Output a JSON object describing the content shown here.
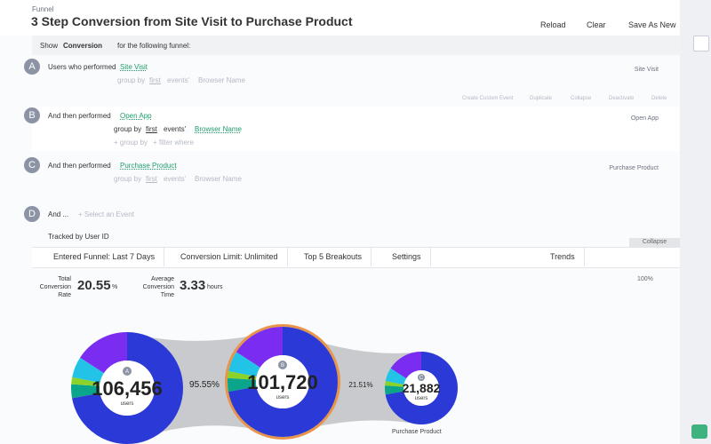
{
  "header": {
    "breadcrumb": "Funnel",
    "title": "3 Step Conversion from Site Visit to Purchase Product",
    "buttons": [
      "Reload",
      "Clear",
      "Save As New"
    ]
  },
  "show_bar": {
    "show": "Show",
    "metric": "Conversion",
    "suffix": "for the following funnel:"
  },
  "steps": [
    {
      "letter": "A",
      "prefix": "Users who performed",
      "event": "Site Visit",
      "group_by": "group by",
      "first": "first",
      "events": "events'",
      "property": "Browser Name",
      "right_label": "Site Visit"
    },
    {
      "letter": "B",
      "prefix": "And then performed",
      "event": "Open App",
      "group_by": "group by",
      "first": "first",
      "events": "events'",
      "property": "Browser Name",
      "add_group": "+ group by",
      "add_filter": "+ filter where",
      "right_label": "Open App"
    },
    {
      "letter": "C",
      "prefix": "And then performed",
      "event": "Purchase Product",
      "group_by": "group by",
      "first": "first",
      "events": "events'",
      "property": "Browser Name",
      "right_label": "Purchase Product"
    },
    {
      "letter": "D",
      "prefix": "And ...",
      "event": "+ Select an Event"
    }
  ],
  "step_actions": [
    "Create Custom Event",
    "Duplicate",
    "Collapse",
    "Deactivate",
    "Delete"
  ],
  "tracked_by": "Tracked by User ID",
  "collapse_tab": "Collapse",
  "toolbar": {
    "date": "Entered Funnel: Last 7 Days",
    "limit": "Conversion Limit: Unlimited",
    "breakouts": "Top 5 Breakouts",
    "settings": "Settings",
    "trends": "Trends"
  },
  "stats": {
    "rate_label": "Total Conversion Rate",
    "rate": "20.55",
    "rate_unit": "%",
    "time_label": "Average Conversion Time",
    "time": "3.33",
    "time_unit": "hours",
    "zoom": "100%"
  },
  "funnel": {
    "nodes": [
      {
        "letter": "A",
        "count": "106,456",
        "unit": "users"
      },
      {
        "letter": "B",
        "count": "101,720",
        "unit": "users"
      },
      {
        "letter": "C",
        "count": "21,882",
        "unit": "users"
      }
    ],
    "conversions": [
      "95.55%",
      "21.51%"
    ],
    "legend": "Purchase Product"
  }
}
